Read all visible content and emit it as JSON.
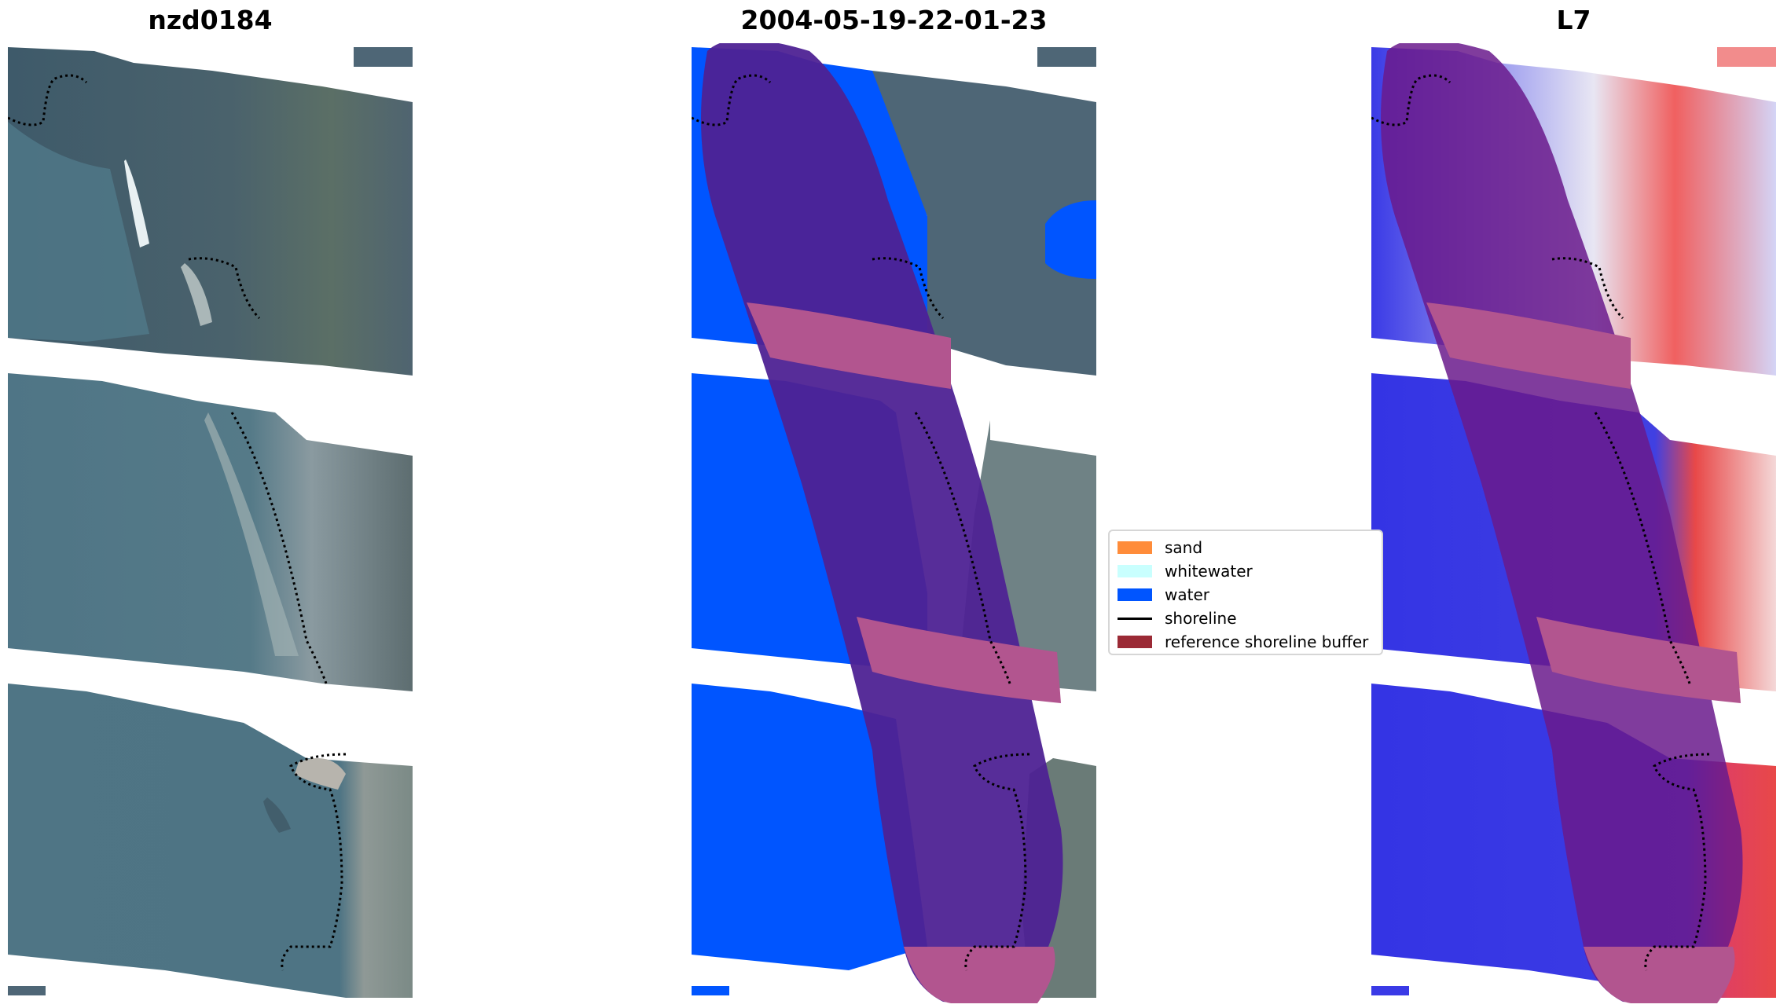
{
  "titles": {
    "left": "nzd0184",
    "center": "2004-05-19-22-01-23",
    "right": "L7"
  },
  "legend": {
    "items": [
      {
        "label": "sand",
        "color": "#ff8c3a",
        "kind": "patch"
      },
      {
        "label": "whitewater",
        "color": "#c9fffe",
        "kind": "patch"
      },
      {
        "label": "water",
        "color": "#0055ff",
        "kind": "patch"
      },
      {
        "label": "shoreline",
        "color": "#000000",
        "kind": "line"
      },
      {
        "label": "reference shoreline buffer",
        "color": "#9b2a35",
        "kind": "patch"
      }
    ]
  },
  "colors": {
    "background": "#ffffff",
    "sea": "#4c7385",
    "land": "#5a6a68",
    "water_class": "#0055ff",
    "buffer_overlay": "#b2558f",
    "buffer_on_water": "#4e2293",
    "index_water": "#3a3ae6",
    "index_land": "#e84848",
    "index_neutral": "#ece6f1",
    "shoreline": "#000000"
  },
  "icons": {
    "shoreline_marker": "dotted-line-icon"
  }
}
